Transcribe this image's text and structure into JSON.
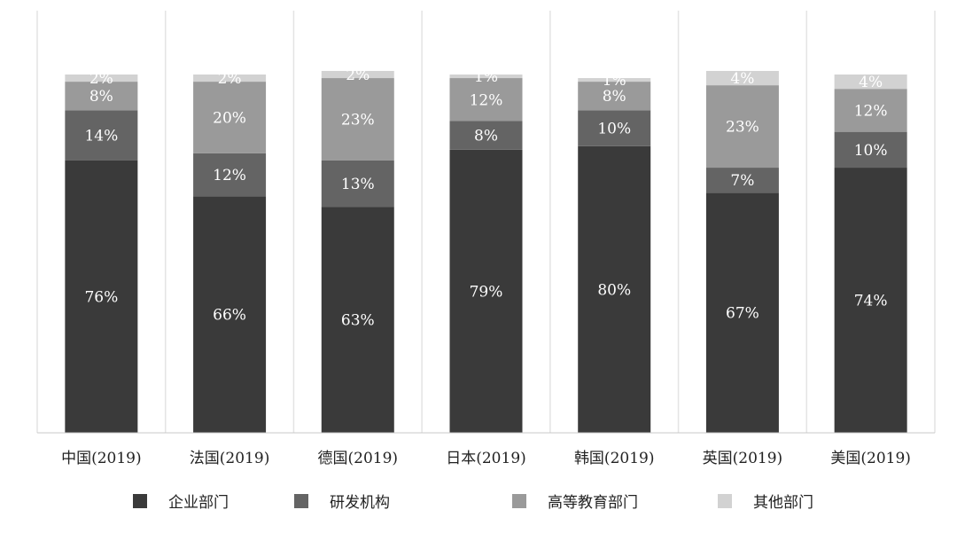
{
  "chart_data": {
    "type": "bar",
    "stacked": true,
    "percent": true,
    "categories": [
      "中国(2019)",
      "法国(2019)",
      "德国(2019)",
      "日本(2019)",
      "韩国(2019)",
      "英国(2019)",
      "美国(2019)"
    ],
    "series": [
      {
        "name": "企业部门",
        "values": [
          76,
          66,
          63,
          79,
          80,
          67,
          74
        ],
        "labels": [
          "76%",
          "66%",
          "63%",
          "79%",
          "80%",
          "67%",
          "74%"
        ],
        "color": "#3a3a3a",
        "label_color": "#ffffff"
      },
      {
        "name": "研发机构",
        "values": [
          14,
          12,
          13,
          8,
          10,
          7,
          10
        ],
        "labels": [
          "14%",
          "12%",
          "13%",
          "8%",
          "10%",
          "7%",
          "10%"
        ],
        "color": "#646464",
        "label_color": "#ffffff"
      },
      {
        "name": "高等教育部门",
        "values": [
          8,
          20,
          23,
          12,
          8,
          23,
          12
        ],
        "labels": [
          "8%",
          "20%",
          "23%",
          "12%",
          "8%",
          "23%",
          "12%"
        ],
        "color": "#9a9a9a",
        "label_color": "#ffffff"
      },
      {
        "name": "其他部门",
        "values": [
          2,
          2,
          2,
          1,
          1,
          4,
          4
        ],
        "labels": [
          "2%",
          "2%",
          "2%",
          "1%",
          "1%",
          "4%",
          "4%"
        ],
        "color": "#d2d2d2",
        "label_color": "#ffffff"
      }
    ],
    "ylim": [
      0,
      100
    ],
    "title": "",
    "xlabel": "",
    "ylabel": "",
    "grid": false,
    "legend_position": "bottom",
    "colors": {
      "panel_divider": "#e4e4e4",
      "axis": "#c8c8c8",
      "text": "#222222"
    }
  }
}
